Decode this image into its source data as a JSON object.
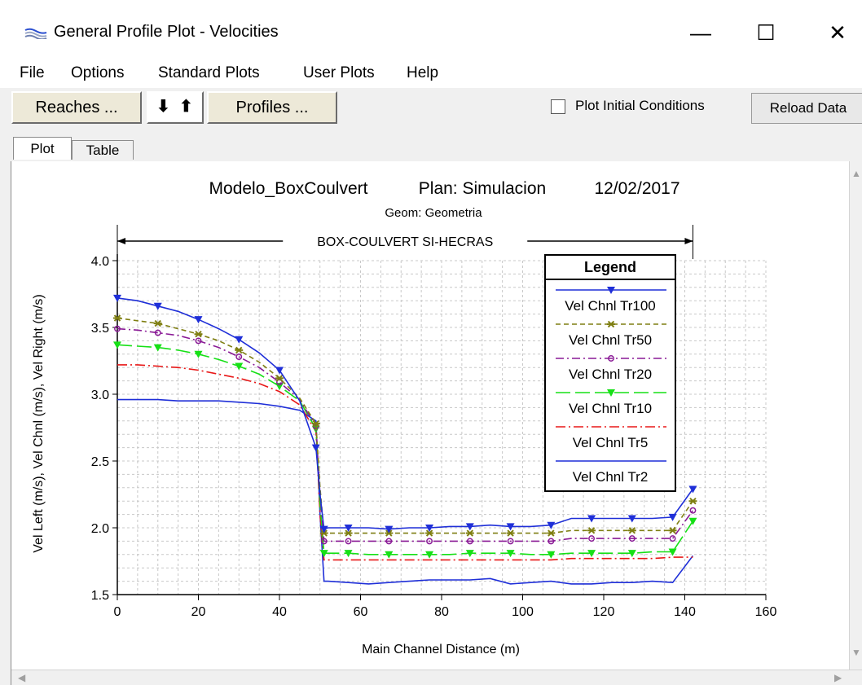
{
  "window": {
    "title": "General Profile Plot - Velocities",
    "minimize_glyph": "—",
    "maximize_glyph": "☐",
    "close_glyph": "✕"
  },
  "menu": [
    "File",
    "Options",
    "Standard Plots",
    "User Plots",
    "Help"
  ],
  "toolbar": {
    "reaches_label": "Reaches ...",
    "down_arrow": "⬇",
    "up_arrow": "⬆",
    "profiles_label": "Profiles ...",
    "plot_initial_conditions_label": "Plot Initial Conditions",
    "plot_initial_conditions_checked": false,
    "reload_label": "Reload Data"
  },
  "tabs": {
    "plot": "Plot",
    "table": "Table",
    "active": "Plot"
  },
  "icons": {
    "app": "hecras-profile-icon",
    "scroll_up": "▲",
    "scroll_down": "▼",
    "scroll_left": "◀",
    "scroll_right": "▶"
  },
  "colors": {
    "Tr100": "#1f2fd8",
    "Tr50": "#7f7f12",
    "Tr20": "#8a1a96",
    "Tr10": "#16e016",
    "Tr5": "#e81818",
    "Tr2": "#1f2fd8"
  },
  "chart_data": {
    "type": "line",
    "title_project": "Modelo_BoxCoulvert",
    "title_plan": "Plan: Simulacion",
    "title_date": "12/02/2017",
    "subtitle": "Geom: Geometria",
    "reach_label": "BOX-COULVERT SI-HECRAS",
    "reach_extent": [
      0,
      142
    ],
    "xlabel": "Main Channel Distance (m)",
    "ylabel": "Vel Left (m/s), Vel Chnl (m/s), Vel Right (m/s)",
    "xlim": [
      0,
      160
    ],
    "ylim": [
      1.5,
      4.0
    ],
    "xticks": [
      0,
      20,
      40,
      60,
      80,
      100,
      120,
      140,
      160
    ],
    "yticks": [
      "1.5",
      "2.0",
      "2.5",
      "3.0",
      "3.5",
      "4.0"
    ],
    "grid": true,
    "legend_title": "Legend",
    "legend_position": "top-right",
    "series": [
      {
        "name": "Vel Chnl Tr100",
        "key": "Tr100",
        "marker": "triangle-down",
        "dash": "",
        "x": [
          0,
          5,
          10,
          15,
          20,
          25,
          30,
          35,
          40,
          45,
          49,
          50,
          51,
          52,
          57,
          62,
          67,
          72,
          77,
          82,
          87,
          92,
          97,
          102,
          107,
          112,
          117,
          122,
          127,
          132,
          137,
          142
        ],
        "y": [
          3.72,
          3.7,
          3.66,
          3.62,
          3.56,
          3.49,
          3.41,
          3.31,
          3.18,
          2.95,
          2.6,
          2.25,
          1.99,
          2.0,
          2.0,
          2.0,
          1.99,
          2.0,
          2.0,
          2.01,
          2.01,
          2.02,
          2.01,
          2.01,
          2.02,
          2.07,
          2.07,
          2.07,
          2.07,
          2.07,
          2.08,
          2.29
        ]
      },
      {
        "name": "Vel Chnl Tr50",
        "key": "Tr50",
        "marker": "star",
        "dash": "6,4",
        "x": [
          0,
          5,
          10,
          15,
          20,
          25,
          30,
          35,
          40,
          45,
          49,
          50,
          51,
          52,
          57,
          62,
          67,
          72,
          77,
          82,
          87,
          92,
          97,
          102,
          107,
          112,
          117,
          122,
          127,
          132,
          137,
          142
        ],
        "y": [
          3.57,
          3.55,
          3.53,
          3.49,
          3.45,
          3.4,
          3.33,
          3.24,
          3.12,
          2.97,
          2.78,
          2.3,
          1.96,
          1.96,
          1.96,
          1.96,
          1.96,
          1.96,
          1.96,
          1.96,
          1.96,
          1.96,
          1.96,
          1.96,
          1.96,
          1.98,
          1.98,
          1.98,
          1.98,
          1.98,
          1.98,
          2.2
        ]
      },
      {
        "name": "Vel Chnl Tr20",
        "key": "Tr20",
        "marker": "circle",
        "dash": "10,4,2,4",
        "x": [
          0,
          5,
          10,
          15,
          20,
          25,
          30,
          35,
          40,
          45,
          49,
          50,
          51,
          52,
          57,
          62,
          67,
          72,
          77,
          82,
          87,
          92,
          97,
          102,
          107,
          112,
          117,
          122,
          127,
          132,
          137,
          142
        ],
        "y": [
          3.49,
          3.48,
          3.46,
          3.44,
          3.4,
          3.35,
          3.28,
          3.2,
          3.09,
          2.96,
          2.76,
          2.25,
          1.9,
          1.9,
          1.9,
          1.9,
          1.9,
          1.9,
          1.9,
          1.9,
          1.9,
          1.9,
          1.9,
          1.9,
          1.9,
          1.92,
          1.92,
          1.92,
          1.92,
          1.92,
          1.92,
          2.13
        ]
      },
      {
        "name": "Vel Chnl Tr10",
        "key": "Tr10",
        "marker": "triangle-down",
        "dash": "18,6",
        "x": [
          0,
          5,
          10,
          15,
          20,
          25,
          30,
          35,
          40,
          45,
          49,
          50,
          51,
          52,
          57,
          62,
          67,
          72,
          77,
          82,
          87,
          92,
          97,
          102,
          107,
          112,
          117,
          122,
          127,
          132,
          137,
          142
        ],
        "y": [
          3.37,
          3.36,
          3.35,
          3.33,
          3.3,
          3.26,
          3.21,
          3.15,
          3.06,
          2.95,
          2.74,
          2.18,
          1.81,
          1.81,
          1.81,
          1.8,
          1.8,
          1.8,
          1.8,
          1.8,
          1.81,
          1.81,
          1.81,
          1.8,
          1.8,
          1.81,
          1.81,
          1.81,
          1.81,
          1.82,
          1.82,
          2.05
        ]
      },
      {
        "name": "Vel Chnl Tr5",
        "key": "Tr5",
        "marker": "none",
        "dash": "12,4,2,4",
        "x": [
          0,
          5,
          10,
          15,
          20,
          25,
          30,
          35,
          40,
          45,
          49,
          50,
          51,
          52,
          57,
          62,
          67,
          72,
          77,
          82,
          87,
          92,
          97,
          102,
          107,
          112,
          117,
          122,
          127,
          132,
          137,
          142
        ],
        "y": [
          3.22,
          3.22,
          3.21,
          3.2,
          3.18,
          3.15,
          3.12,
          3.08,
          3.02,
          2.92,
          2.72,
          2.1,
          1.76,
          1.76,
          1.76,
          1.76,
          1.76,
          1.76,
          1.76,
          1.76,
          1.76,
          1.76,
          1.76,
          1.76,
          1.76,
          1.77,
          1.77,
          1.77,
          1.77,
          1.77,
          1.78,
          1.78
        ]
      },
      {
        "name": "Vel Chnl Tr2",
        "key": "Tr2",
        "marker": "none",
        "dash": "",
        "x": [
          0,
          5,
          10,
          15,
          20,
          25,
          30,
          35,
          40,
          45,
          49,
          50,
          51,
          52,
          57,
          62,
          67,
          72,
          77,
          82,
          87,
          92,
          97,
          102,
          107,
          112,
          117,
          122,
          127,
          132,
          137,
          142
        ],
        "y": [
          2.96,
          2.96,
          2.96,
          2.95,
          2.95,
          2.95,
          2.94,
          2.93,
          2.91,
          2.88,
          2.8,
          2.1,
          1.6,
          1.6,
          1.59,
          1.58,
          1.59,
          1.6,
          1.61,
          1.61,
          1.61,
          1.62,
          1.58,
          1.59,
          1.6,
          1.58,
          1.58,
          1.59,
          1.59,
          1.6,
          1.59,
          1.79
        ]
      }
    ]
  }
}
